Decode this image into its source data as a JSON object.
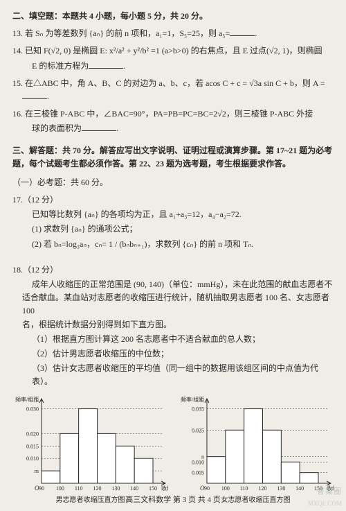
{
  "section2": {
    "heading": "二、填空题：本题共 4 小题，每小题 5 分，共 20 分。",
    "q13": "13. 若 Sₙ 为等差数列 {aₙ} 的前 n 项和，a₁=1，S₅=25，则 a₅=",
    "q14a": "14. 已知 F(√2, 0) 是椭圆 E: x²/a² + y²/b² =1 (a>b>0) 的右焦点，且 E 过点(√2, 1)，则椭圆",
    "q14b": "E 的标准方程为",
    "q15": "15. 在△ABC 中，角 A、B、C 的对边为 a、b、c，若 acos C + c = √3a sin C + b，则 A =",
    "q16a": "16. 在三棱锥 P-ABC 中，∠BAC=90°，PA=PB=PC=BC=2√2，则三棱锥 P-ABC 外接",
    "q16b": "球的表面积为"
  },
  "section3": {
    "heading": "三、解答题：共 70 分。解答应写出文字说明、证明过程或演算步骤。第 17~21 题为必考题，每个试题考生都必须作答。第 22、23 题为选考题，考生根据要求作答。",
    "sub1": "（一）必考题：共 60 分。",
    "q17": {
      "head": "17.（12 分）",
      "l1": "已知等比数列 {aₙ} 的各项均为正，且 a₁+a₃=12，a₄−a₂=72.",
      "l2": "(1) 求数列 {aₙ} 的通项公式；",
      "l3": "(2) 若 bₙ=log₃aₙ，cₙ= 1 / (bₙbₙ₊₁)，求数列 {cₙ} 的前 n 项和 Tₙ."
    },
    "q18": {
      "head": "18.（12 分）",
      "l1": "成年人收缩压的正常范围是 (90, 140)（单位：mmHg），未在此范围的献血志愿者不",
      "l2": "适合献血。某血站对志愿者的收缩压进行统计，随机抽取男志愿者 100 名、女志愿者 100",
      "l3": "名，根据统计数据分别得到如下直方图。",
      "p1": "（1）根据直方图计算这 200 名志愿者中不适合献血的总人数；",
      "p2": "（2）估计男志愿者收缩压的中位数；",
      "p3": "（3）估计女志愿者收缩压的平均值（同一组中的数据用该组区间的中点值为代表）。"
    }
  },
  "chart_male": {
    "type": "histogram",
    "title": "男志愿者收缩压直方图",
    "xlabel": "收缩压",
    "ylabel": "频率/组距",
    "xticks": [
      "90",
      "100",
      "110",
      "120",
      "130",
      "140",
      "150"
    ],
    "yticks": [
      {
        "v": 0.005,
        "label": "m"
      },
      {
        "v": 0.01,
        "label": "0.010"
      },
      {
        "v": 0.015,
        "label": "0.015"
      },
      {
        "v": 0.02,
        "label": "0.020"
      },
      {
        "v": 0.03,
        "label": "0.030"
      }
    ],
    "bars": [
      0.005,
      0.02,
      0.03,
      0.02,
      0.015,
      0.01
    ],
    "bar_fill": "#ffffff",
    "bar_stroke": "#2a2a2a",
    "bg": "#f0ede6",
    "axis_color": "#2a2a2a",
    "font_size": 8
  },
  "chart_female": {
    "type": "histogram",
    "title": "女志愿者收缩压直方图",
    "xlabel": "收缩压",
    "ylabel": "频率/组距",
    "xticks": [
      "90",
      "100",
      "110",
      "120",
      "130",
      "140",
      "150"
    ],
    "yticks": [
      {
        "v": 0.005,
        "label": "0.005"
      },
      {
        "v": 0.01,
        "label": "0.010"
      },
      {
        "v": 0.0125,
        "label": "n"
      },
      {
        "v": 0.025,
        "label": "0.025"
      },
      {
        "v": 0.035,
        "label": "0.035"
      }
    ],
    "bars": [
      0.0125,
      0.025,
      0.035,
      0.025,
      0.01,
      0.005
    ],
    "bar_fill": "#ffffff",
    "bar_stroke": "#2a2a2a",
    "bg": "#f0ede6",
    "axis_color": "#2a2a2a",
    "font_size": 8
  },
  "footer": "高三文科数学   第 3 页  共 4 页",
  "watermark": "答案圈",
  "watermark2": "MXQE.COM"
}
